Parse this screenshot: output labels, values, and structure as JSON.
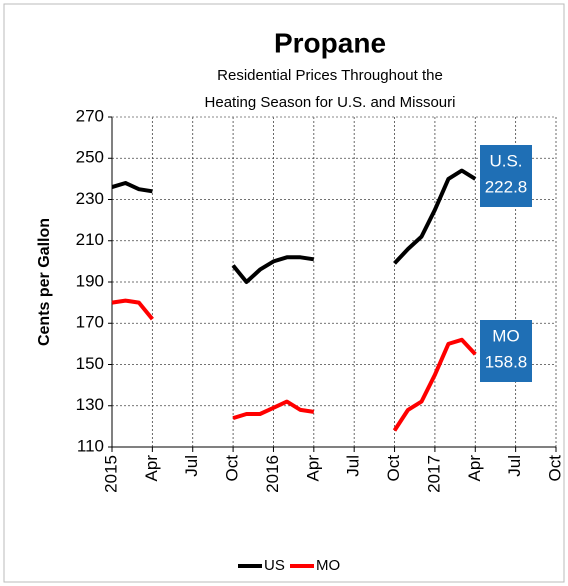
{
  "chart_data": {
    "type": "line",
    "title": "Propane",
    "subtitle": [
      "Residential Prices Throughout the",
      "Heating Season for U.S. and Missouri"
    ],
    "y_label": "Cents per Gallon",
    "categories": [
      "2015",
      null,
      null,
      "Apr",
      null,
      null,
      "Jul",
      null,
      null,
      "Oct",
      null,
      null,
      "2016",
      null,
      null,
      "Apr",
      null,
      null,
      "Jul",
      null,
      null,
      "Oct",
      null,
      null,
      "2017",
      null,
      null,
      "Apr",
      null,
      null,
      "Jul",
      null,
      null,
      "Oct"
    ],
    "series": [
      {
        "name": "US",
        "color": "#000000",
        "values": [
          236,
          238,
          235,
          234,
          null,
          null,
          null,
          null,
          null,
          198,
          190,
          196,
          200,
          202,
          202,
          201,
          null,
          null,
          null,
          null,
          null,
          199,
          206,
          212,
          225,
          240,
          244,
          240,
          null,
          null,
          null,
          null,
          null,
          null
        ]
      },
      {
        "name": "MO",
        "color": "#ff0000",
        "values": [
          180,
          181,
          180,
          172,
          null,
          null,
          null,
          null,
          null,
          124,
          126,
          126,
          129,
          132,
          128,
          127,
          null,
          null,
          null,
          null,
          null,
          118,
          128,
          132,
          145,
          160,
          162,
          155,
          null,
          null,
          null,
          null,
          null,
          null
        ]
      }
    ],
    "annotations": [
      {
        "label": "U.S.",
        "value": 222.8,
        "color": "#1f6fb5"
      },
      {
        "label": "MO",
        "value": 158.8,
        "color": "#1f6fb5"
      }
    ],
    "ylim": [
      110,
      270
    ],
    "yticks": [
      110,
      130,
      150,
      170,
      190,
      210,
      230,
      250,
      270
    ],
    "grid": true,
    "legend": "bottom"
  }
}
